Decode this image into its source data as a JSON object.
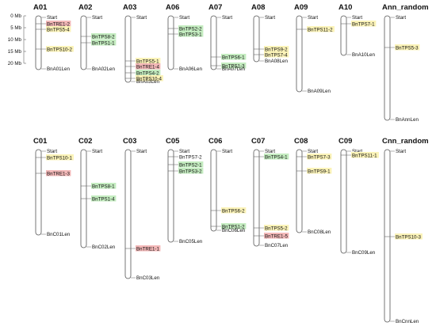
{
  "colors": {
    "red": "#f3b8b8",
    "green": "#c4ecc0",
    "yellow": "#fbf3b8"
  },
  "scale": {
    "label_0": "0 Mb",
    "label_5": "5 Mb",
    "label_10": "10 Mb",
    "label_15": "15 Mb",
    "label_20": "20 Mb"
  },
  "chromosomes": [
    {
      "name": "A01",
      "start": "Start",
      "end": "BnA01Len",
      "genes": [
        {
          "label": "BnTRE1-2",
          "color": "red"
        },
        {
          "label": "BnTPS5-4",
          "color": "yellow"
        },
        {
          "label": "BnTPS10-2",
          "color": "yellow"
        }
      ]
    },
    {
      "name": "A02",
      "start": "Start",
      "end": "BnA02Len",
      "genes": [
        {
          "label": "BnTPS8-2",
          "color": "green"
        },
        {
          "label": "BnTPS1-1",
          "color": "green"
        }
      ]
    },
    {
      "name": "A03",
      "start": "Start",
      "end": "BnA03Len",
      "genes": [
        {
          "label": "BnTPS5-1",
          "color": "yellow"
        },
        {
          "label": "BnTRE1-4",
          "color": "red"
        },
        {
          "label": "BnTPS4-2",
          "color": "green"
        },
        {
          "label": "BnTPS10-4",
          "color": "yellow"
        }
      ]
    },
    {
      "name": "A06",
      "start": "Start",
      "end": "BnA06Len",
      "genes": [
        {
          "label": "BnTPS2-2",
          "color": "green"
        },
        {
          "label": "BnTPS3-1",
          "color": "green"
        }
      ]
    },
    {
      "name": "A07",
      "start": "Start",
      "end": "BnA07Len",
      "genes": [
        {
          "label": "BnTPS6-1",
          "color": "green"
        },
        {
          "label": "BnTPS1-3",
          "color": "green"
        }
      ]
    },
    {
      "name": "A08",
      "start": "Start",
      "end": "BnA08Len",
      "genes": [
        {
          "label": "BnTPS9-2",
          "color": "yellow"
        },
        {
          "label": "BnTPS7-4",
          "color": "yellow"
        }
      ]
    },
    {
      "name": "A09",
      "start": "Start",
      "end": "BnA09Len",
      "genes": [
        {
          "label": "BnTPS11-2",
          "color": "yellow"
        }
      ]
    },
    {
      "name": "A10",
      "start": "Start",
      "end": "BnA10Len",
      "genes": [
        {
          "label": "BnTPS7-1",
          "color": "yellow"
        }
      ]
    },
    {
      "name": "Ann_random",
      "start": "Start",
      "end": "BnAnnLen",
      "genes": [
        {
          "label": "BnTPS5-3",
          "color": "yellow"
        }
      ]
    },
    {
      "name": "C01",
      "start": "Start",
      "end": "BnC01Len",
      "genes": [
        {
          "label": "BnTPS10-1",
          "color": "yellow"
        },
        {
          "label": "BnTRE1-3",
          "color": "red"
        }
      ]
    },
    {
      "name": "C02",
      "start": "Start",
      "end": "BnC02Len",
      "genes": [
        {
          "label": "BnTPS8-1",
          "color": "green"
        },
        {
          "label": "BnTPS1-4",
          "color": "green"
        }
      ]
    },
    {
      "name": "C03",
      "start": "Start",
      "end": "BnC03Len",
      "genes": [
        {
          "label": "BnTRE1-1",
          "color": "red"
        }
      ]
    },
    {
      "name": "C05",
      "start": "Start",
      "end": "BnC05Len",
      "genes": [
        {
          "label": "BnTPS7-2",
          "color": "none"
        },
        {
          "label": "BnTPS2-1",
          "color": "green"
        },
        {
          "label": "BnTPS3-2",
          "color": "green"
        }
      ]
    },
    {
      "name": "C06",
      "start": "Start",
      "end": "BnC06Len",
      "genes": [
        {
          "label": "BnTPS6-2",
          "color": "yellow"
        },
        {
          "label": "BnTPS1-2",
          "color": "green"
        }
      ]
    },
    {
      "name": "C07",
      "start": "Start",
      "end": "BnC07Len",
      "genes": [
        {
          "label": "BnTPS4-1",
          "color": "green"
        },
        {
          "label": "BnTPS5-2",
          "color": "yellow"
        },
        {
          "label": "BnTRE1-5",
          "color": "red"
        }
      ]
    },
    {
      "name": "C08",
      "start": "Start",
      "end": "BnC08Len",
      "genes": [
        {
          "label": "BnTPS7-3",
          "color": "yellow"
        },
        {
          "label": "BnTPS9-1",
          "color": "yellow"
        }
      ]
    },
    {
      "name": "C09",
      "start": "Start",
      "end": "BnC09Len",
      "genes": [
        {
          "label": "BnTPS11-1",
          "color": "yellow"
        }
      ]
    },
    {
      "name": "Cnn_random",
      "start": "Start",
      "end": "BnCnnLen",
      "genes": [
        {
          "label": "BnTPS10-3",
          "color": "yellow"
        }
      ]
    }
  ]
}
